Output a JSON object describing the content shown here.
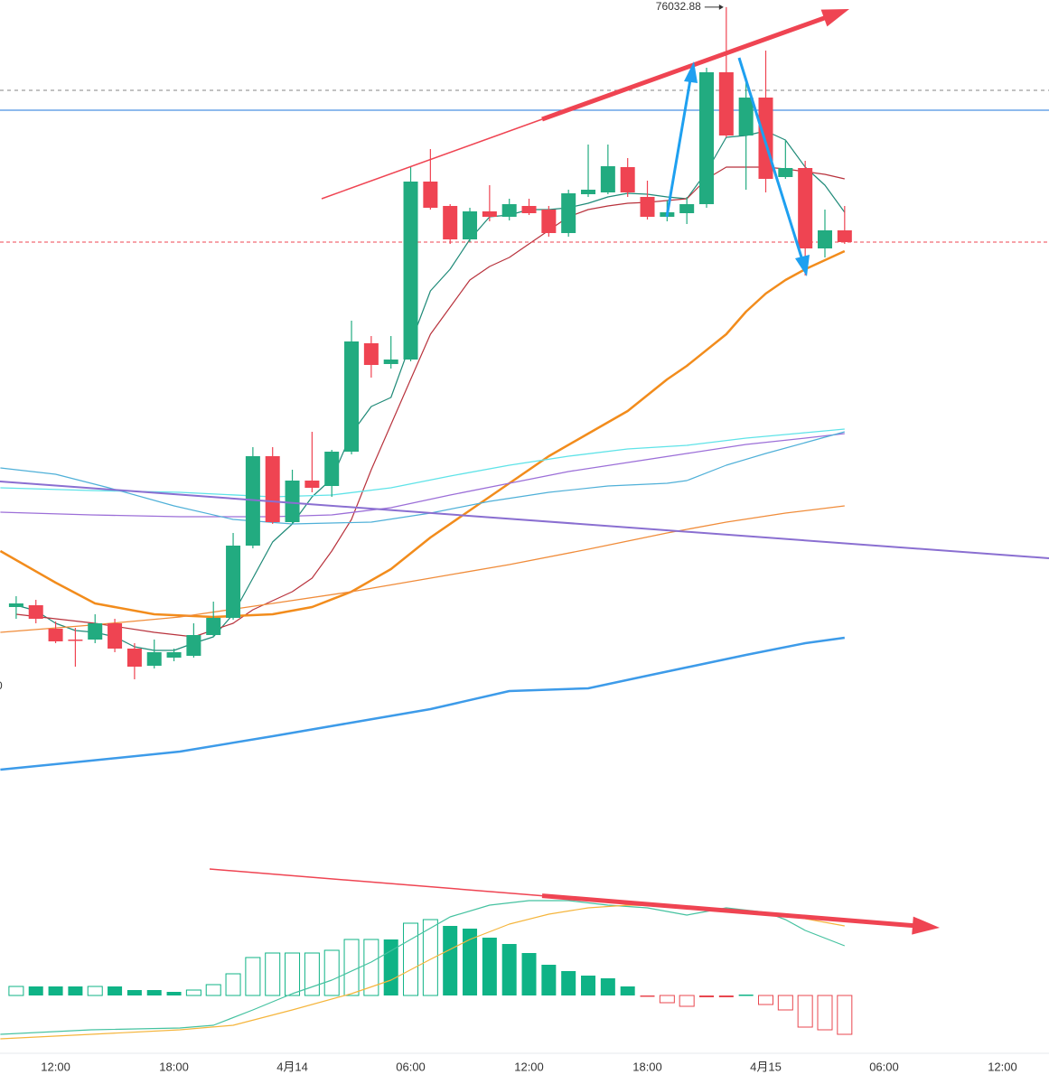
{
  "chart_data": [
    {
      "type": "candlestick",
      "x": [
        0,
        1,
        2,
        3,
        4,
        5,
        6,
        7,
        8,
        9,
        10,
        11,
        12,
        13,
        14,
        15,
        16,
        17,
        18,
        19,
        20,
        21,
        22,
        23,
        24,
        25,
        26,
        27,
        28,
        29,
        30,
        31,
        32,
        33,
        34,
        35,
        36,
        37,
        38,
        39,
        40,
        41,
        42
      ],
      "open": [
        72712,
        72722,
        72592,
        72532,
        72532,
        72622,
        72482,
        72387,
        72432,
        72442,
        72557,
        72652,
        73052,
        73547,
        73182,
        73412,
        73382,
        73572,
        74172,
        74057,
        74082,
        75067,
        74932,
        74747,
        74902,
        74872,
        74932,
        74912,
        74782,
        74997,
        75007,
        75147,
        74982,
        74872,
        74892,
        74942,
        75672,
        75322,
        75532,
        75092,
        75142,
        74697,
        74797
      ],
      "high": [
        72772,
        72752,
        72632,
        72597,
        72672,
        72647,
        72512,
        72532,
        72482,
        72622,
        72742,
        73122,
        73597,
        73597,
        73472,
        73682,
        73582,
        74297,
        74212,
        74212,
        75147,
        75247,
        74942,
        74922,
        75047,
        74972,
        74972,
        74932,
        75022,
        75272,
        75272,
        75197,
        75072,
        74962,
        74982,
        75697,
        76032.88,
        75622,
        75792,
        75297,
        75182,
        74912,
        74932
      ],
      "low": [
        72647,
        72622,
        72512,
        72382,
        72512,
        72462,
        72312,
        72372,
        72412,
        72432,
        72547,
        72642,
        73037,
        73172,
        73172,
        73347,
        73322,
        73557,
        73982,
        74032,
        74072,
        74912,
        74722,
        74732,
        74847,
        74852,
        74882,
        74762,
        74762,
        74982,
        74997,
        74982,
        74857,
        74847,
        74832,
        74922,
        75312,
        75022,
        75007,
        75082,
        74547,
        74647,
        74722
      ],
      "close": [
        72732,
        72647,
        72522,
        72527,
        72622,
        72482,
        72382,
        72462,
        72462,
        72557,
        72652,
        73052,
        73547,
        73182,
        73412,
        73372,
        73572,
        74182,
        74052,
        74082,
        75067,
        74922,
        74747,
        74902,
        74872,
        74942,
        74892,
        74782,
        75002,
        75022,
        75152,
        75007,
        74872,
        74897,
        74942,
        75672,
        75322,
        75532,
        75082,
        75142,
        74697,
        74797,
        74732
      ],
      "up_color": "#22ab80",
      "down_color": "#ef4452",
      "xlim": [
        -0.82,
        52.36
      ],
      "ylim": [
        71372,
        76072
      ],
      "hlines": [
        {
          "value": 75572,
          "color": "#9e9e9e",
          "style": "dashed"
        },
        {
          "value": 75462,
          "color": "#4a90e2",
          "style": "solid"
        }
      ],
      "price_line": true,
      "lines": [
        {
          "color": "#1f8a78",
          "width": 1.2,
          "x": [
            0,
            1,
            2,
            3,
            4,
            5,
            6,
            7,
            8,
            9,
            10,
            11,
            12,
            13,
            14,
            15,
            16,
            17,
            18,
            19,
            20,
            21,
            22,
            23,
            24,
            25,
            26,
            27,
            28,
            29,
            30,
            31,
            32,
            33,
            34,
            35,
            36,
            37,
            38,
            39,
            40,
            41,
            42
          ],
          "values": [
            72722,
            72692,
            72622,
            72582,
            72572,
            72547,
            72492,
            72472,
            72472,
            72512,
            72547,
            72672,
            72872,
            73072,
            73172,
            73322,
            73422,
            73672,
            73822,
            73872,
            74172,
            74462,
            74582,
            74747,
            74872,
            74882,
            74912,
            74912,
            74922,
            74947,
            74982,
            75002,
            74997,
            74982,
            74972,
            75122,
            75312,
            75322,
            75347,
            75297,
            75147,
            75047,
            74897
          ]
        },
        {
          "color": "#b8323c",
          "width": 1.2,
          "x": [
            0,
            4,
            7,
            9,
            11,
            12,
            13,
            14,
            15,
            16,
            17,
            18,
            19,
            20,
            21,
            22,
            23,
            24,
            25,
            26,
            27,
            28,
            29,
            30,
            31,
            32,
            33,
            34,
            35,
            36,
            37,
            38,
            39,
            40,
            41,
            42
          ],
          "values": [
            72672,
            72622,
            72572,
            72547,
            72622,
            72697,
            72747,
            72797,
            72872,
            73022,
            73197,
            73472,
            73722,
            73972,
            74222,
            74372,
            74522,
            74597,
            74647,
            74722,
            74797,
            74872,
            74912,
            74932,
            74947,
            74952,
            74962,
            74972,
            75082,
            75147,
            75147,
            75147,
            75137,
            75122,
            75107,
            75082
          ]
        },
        {
          "color": "#f28c1c",
          "width": 2.5,
          "x": [
            -0.8,
            2,
            4,
            7,
            10,
            13,
            15,
            17,
            19,
            21,
            23,
            25,
            27,
            29,
            31,
            33,
            34,
            36,
            37,
            38,
            39,
            40,
            42
          ],
          "values": [
            73022,
            72847,
            72732,
            72672,
            72657,
            72672,
            72712,
            72797,
            72922,
            73097,
            73247,
            73397,
            73547,
            73672,
            73797,
            73972,
            74047,
            74222,
            74347,
            74447,
            74522,
            74582,
            74682
          ]
        },
        {
          "color": "#5fe3e8",
          "width": 1.3,
          "x": [
            -0.8,
            3.8,
            8.3,
            13,
            16,
            19,
            22,
            25,
            28,
            31,
            34,
            37,
            40,
            42
          ],
          "values": [
            73372,
            73357,
            73347,
            73322,
            73332,
            73372,
            73437,
            73497,
            73547,
            73587,
            73607,
            73647,
            73677,
            73697
          ]
        },
        {
          "color": "#9c6fd8",
          "width": 1.3,
          "x": [
            -0.8,
            3.8,
            8.3,
            13,
            16,
            19,
            22,
            25,
            28,
            31,
            34,
            37,
            40,
            42
          ],
          "values": [
            73237,
            73222,
            73212,
            73212,
            73222,
            73262,
            73332,
            73397,
            73462,
            73512,
            73562,
            73612,
            73647,
            73672
          ]
        },
        {
          "color": "#4fb0d8",
          "width": 1.2,
          "x": [
            -0.8,
            2,
            4.7,
            8,
            11,
            14,
            18,
            21,
            24,
            27,
            30,
            33,
            34,
            36,
            38,
            40,
            42
          ],
          "values": [
            73482,
            73447,
            73372,
            73272,
            73197,
            73172,
            73182,
            73232,
            73297,
            73347,
            73382,
            73397,
            73412,
            73497,
            73562,
            73622,
            73682
          ]
        },
        {
          "color": "#f08c3a",
          "width": 1.3,
          "x": [
            -0.8,
            3.8,
            8.3,
            13,
            17,
            21,
            25,
            29,
            33,
            36,
            39,
            42
          ],
          "values": [
            72572,
            72612,
            72657,
            72732,
            72797,
            72872,
            72947,
            73032,
            73122,
            73182,
            73232,
            73272
          ]
        },
        {
          "color": "#3d9be9",
          "width": 2.5,
          "x": [
            -0.8,
            3.8,
            8.3,
            13,
            17,
            21,
            25,
            29,
            32,
            37,
            40,
            42
          ],
          "values": [
            71812,
            71862,
            71912,
            71997,
            72072,
            72147,
            72247,
            72262,
            72332,
            72447,
            72512,
            72542
          ]
        }
      ],
      "left_fragment": "0"
    },
    {
      "type": "macd",
      "x": [
        0,
        1,
        2,
        3,
        4,
        5,
        6,
        7,
        8,
        9,
        10,
        11,
        12,
        13,
        14,
        15,
        16,
        17,
        18,
        19,
        20,
        21,
        22,
        23,
        24,
        25,
        26,
        27,
        28,
        29,
        30,
        31,
        32,
        33,
        34,
        35,
        36,
        37,
        38,
        39,
        40,
        41,
        42
      ],
      "values": [
        10,
        10,
        10,
        10,
        10,
        10,
        6,
        6,
        4,
        6,
        12,
        24,
        42,
        47,
        47,
        47,
        50,
        62,
        62,
        62,
        80,
        84,
        77,
        74,
        64,
        57,
        47,
        34,
        27,
        22,
        19,
        10,
        -1,
        -8,
        -12,
        -2,
        -2,
        1,
        -10,
        -16,
        -35,
        -38,
        -43
      ],
      "hollow": [
        true,
        false,
        false,
        false,
        true,
        false,
        false,
        false,
        false,
        true,
        true,
        true,
        true,
        true,
        true,
        true,
        true,
        true,
        true,
        false,
        true,
        true,
        false,
        false,
        false,
        false,
        false,
        false,
        false,
        false,
        false,
        false,
        false,
        true,
        true,
        false,
        false,
        false,
        true,
        true,
        true,
        true,
        true
      ],
      "up_color": "#0fb386",
      "down_color": "#e8474f",
      "xlim": [
        -0.82,
        52.36
      ],
      "ylim": [
        -70,
        150
      ],
      "lines": [
        {
          "color": "#45c2a0",
          "width": 1.2,
          "x": [
            -0.8,
            3.8,
            8.3,
            10,
            12,
            14,
            16,
            18,
            20,
            22,
            24,
            26,
            28,
            30,
            32,
            34,
            36,
            38,
            39,
            40,
            42
          ],
          "values": [
            -43,
            -38,
            -36,
            -33,
            -16,
            2,
            17,
            37,
            62,
            87,
            100,
            105,
            105,
            100,
            97,
            89,
            97,
            92,
            84,
            72,
            55
          ]
        },
        {
          "color": "#f5b53c",
          "width": 1.2,
          "x": [
            -0.8,
            3.8,
            8.3,
            11,
            14,
            17,
            19,
            21,
            23,
            25,
            27,
            29,
            31,
            33,
            35,
            37,
            39,
            42
          ],
          "values": [
            -48,
            -43,
            -38,
            -33,
            -16,
            2,
            17,
            40,
            62,
            79,
            90,
            97,
            100,
            99,
            97,
            94,
            89,
            77
          ]
        }
      ],
      "xticks": [
        {
          "value": 2,
          "label": "12:00"
        },
        {
          "value": 8,
          "label": "18:00"
        },
        {
          "value": 14,
          "label": "4月14"
        },
        {
          "value": 20,
          "label": "06:00"
        },
        {
          "value": 26,
          "label": "12:00"
        },
        {
          "value": 32,
          "label": "18:00"
        },
        {
          "value": 38,
          "label": "4月15"
        },
        {
          "value": 44,
          "label": "06:00"
        },
        {
          "value": 50,
          "label": "12:00"
        }
      ]
    }
  ]
}
